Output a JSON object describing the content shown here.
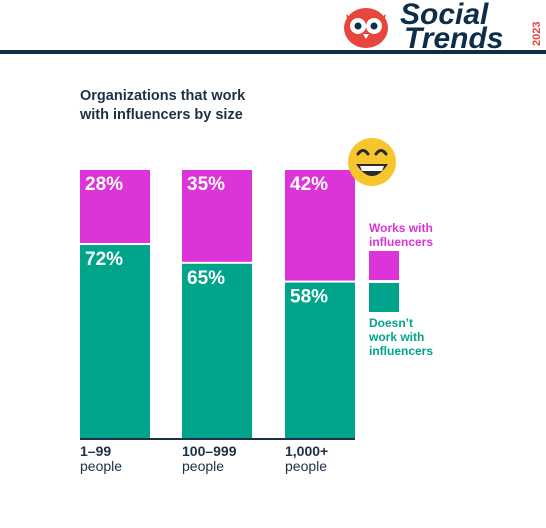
{
  "brand": {
    "line1": "Social",
    "line2": "Trends",
    "year": "2023",
    "colors": {
      "navy": "#0d2e4a",
      "red": "#e8453c"
    },
    "icon": "owl-logo-icon"
  },
  "title": "Organizations that work with influencers by size",
  "title_lines": [
    "Organizations that work",
    "with influencers by size"
  ],
  "emoji": "grinning-face-emoji-icon",
  "colors": {
    "works": "#dc34d8",
    "doesnt": "#00a48a",
    "text": "#1d3146",
    "axis": "#1d3146"
  },
  "chart_data": {
    "type": "bar",
    "stacked": true,
    "categories": [
      {
        "line1": "1–99",
        "line2": "people"
      },
      {
        "line1": "100–999",
        "line2": "people"
      },
      {
        "line1": "1,000+",
        "line2": "people"
      }
    ],
    "series": [
      {
        "name": "Doesn’t work with influencers",
        "values": [
          72,
          65,
          58
        ],
        "labels": [
          "72%",
          "65%",
          "58%"
        ]
      },
      {
        "name": "Works with influencers",
        "values": [
          28,
          35,
          42
        ],
        "labels": [
          "28%",
          "35%",
          "42%"
        ]
      }
    ],
    "ylim": [
      0,
      100
    ],
    "legend": {
      "placement": "right",
      "works_lines": [
        "Works with",
        "influencers"
      ],
      "doesnt_lines": [
        "Doesn’t",
        "work with",
        "influencers"
      ]
    }
  }
}
